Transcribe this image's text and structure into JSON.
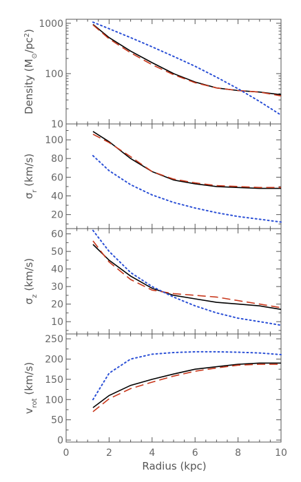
{
  "figure": {
    "xlabel": "Radius (kpc)",
    "xlim": [
      0,
      10
    ],
    "x_ticks": [
      0,
      2,
      4,
      6,
      8,
      10
    ],
    "series_colors": {
      "solid": "#000000",
      "dashed": "#c8361a",
      "dotted": "#2a4fd6"
    }
  },
  "chart_data": [
    {
      "type": "line",
      "ylabel": "Density (M⊙/pc²)",
      "ylabel_parts": {
        "main": "Density (M",
        "sub": "⊙",
        "end": "/pc",
        "sup": "2",
        "close": ")"
      },
      "yscale": "log",
      "ylim": [
        10,
        1200
      ],
      "y_ticks": [
        10,
        100,
        1000
      ],
      "y_tick_labels": [
        "10",
        "100",
        "1000"
      ],
      "series": [
        {
          "style": "solid",
          "color": "#000000",
          "x": [
            1.25,
            2,
            3,
            4,
            5,
            6,
            7,
            8,
            9,
            10
          ],
          "y": [
            950,
            520,
            280,
            165,
            100,
            68,
            52,
            46,
            43,
            38
          ]
        },
        {
          "style": "dashed",
          "color": "#c8361a",
          "x": [
            1.25,
            2,
            3,
            4,
            5,
            6,
            7,
            8,
            9,
            10
          ],
          "y": [
            930,
            490,
            260,
            150,
            95,
            66,
            52,
            46,
            43,
            36
          ]
        },
        {
          "style": "dotted",
          "color": "#2a4fd6",
          "x": [
            1.25,
            2,
            3,
            4,
            5,
            6,
            7,
            8,
            9,
            10
          ],
          "y": [
            1050,
            780,
            520,
            340,
            220,
            140,
            85,
            50,
            28,
            15
          ]
        }
      ]
    },
    {
      "type": "line",
      "ylabel": "σr (km/s)",
      "ylabel_parts": {
        "main": "σ",
        "sub": "r",
        "end": " (km/s)"
      },
      "yscale": "linear",
      "ylim": [
        5,
        117
      ],
      "y_ticks": [
        20,
        40,
        60,
        80,
        100
      ],
      "y_tick_labels": [
        "20",
        "40",
        "60",
        "80",
        "100"
      ],
      "series": [
        {
          "style": "solid",
          "color": "#000000",
          "x": [
            1.25,
            2,
            3,
            4,
            5,
            6,
            7,
            8,
            9,
            10
          ],
          "y": [
            109,
            98,
            80,
            66,
            57,
            53,
            50,
            49,
            48,
            48
          ]
        },
        {
          "style": "dashed",
          "color": "#c8361a",
          "x": [
            1.25,
            2,
            3,
            4,
            5,
            6,
            7,
            8,
            9,
            10
          ],
          "y": [
            106,
            97,
            82,
            66,
            58,
            54,
            51,
            50,
            49,
            49
          ]
        },
        {
          "style": "dotted",
          "color": "#2a4fd6",
          "x": [
            1.25,
            2,
            3,
            4,
            5,
            6,
            7,
            8,
            9,
            10
          ],
          "y": [
            83,
            67,
            52,
            41,
            33,
            27,
            22,
            18,
            15,
            12
          ]
        }
      ]
    },
    {
      "type": "line",
      "ylabel": "σz (km/s)",
      "ylabel_parts": {
        "main": "σ",
        "sub": "z",
        "end": " (km/s)"
      },
      "yscale": "linear",
      "ylim": [
        3,
        63
      ],
      "y_ticks": [
        10,
        20,
        30,
        40,
        50,
        60
      ],
      "y_tick_labels": [
        "10",
        "20",
        "30",
        "40",
        "50",
        "60"
      ],
      "series": [
        {
          "style": "solid",
          "color": "#000000",
          "x": [
            1.25,
            2,
            3,
            4,
            5,
            6,
            7,
            8,
            9,
            10
          ],
          "y": [
            54,
            45,
            36,
            29,
            25,
            23,
            21,
            20,
            19,
            17
          ]
        },
        {
          "style": "dashed",
          "color": "#c8361a",
          "x": [
            1.25,
            2,
            3,
            4,
            5,
            6,
            7,
            8,
            9,
            10
          ],
          "y": [
            56,
            44,
            34,
            28,
            26,
            25,
            24,
            22,
            20,
            18
          ]
        },
        {
          "style": "dotted",
          "color": "#2a4fd6",
          "x": [
            1.25,
            2,
            3,
            4,
            5,
            6,
            7,
            8,
            9,
            10
          ],
          "y": [
            62,
            50,
            38,
            30,
            24,
            19,
            15,
            12,
            10,
            8
          ]
        }
      ]
    },
    {
      "type": "line",
      "ylabel": "vrot (km/s)",
      "ylabel_parts": {
        "main": "v",
        "sub": "rot",
        "end": " (km/s)"
      },
      "yscale": "linear",
      "ylim": [
        -5,
        262
      ],
      "y_ticks": [
        0,
        50,
        100,
        150,
        200,
        250
      ],
      "y_tick_labels": [
        "0",
        "50",
        "100",
        "150",
        "200",
        "250"
      ],
      "series": [
        {
          "style": "solid",
          "color": "#000000",
          "x": [
            1.25,
            2,
            3,
            4,
            5,
            6,
            7,
            8,
            9,
            10
          ],
          "y": [
            80,
            110,
            135,
            150,
            163,
            175,
            181,
            187,
            190,
            190
          ]
        },
        {
          "style": "dashed",
          "color": "#c8361a",
          "x": [
            1.25,
            2,
            3,
            4,
            5,
            6,
            7,
            8,
            9,
            10
          ],
          "y": [
            70,
            102,
            127,
            143,
            158,
            170,
            178,
            185,
            187,
            187
          ]
        },
        {
          "style": "dotted",
          "color": "#2a4fd6",
          "x": [
            1.25,
            2,
            3,
            4,
            5,
            6,
            7,
            8,
            9,
            10
          ],
          "y": [
            100,
            165,
            200,
            212,
            216,
            218,
            218,
            217,
            215,
            211
          ]
        }
      ]
    }
  ]
}
